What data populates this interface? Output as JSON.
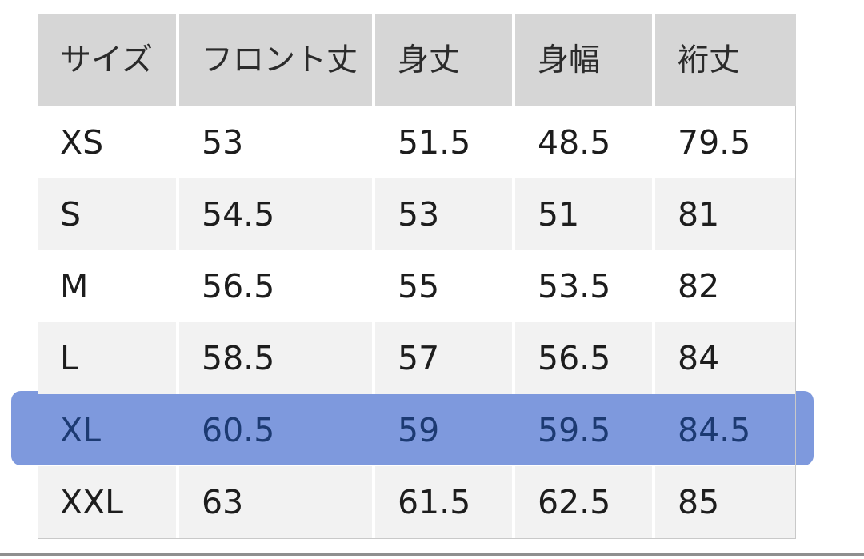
{
  "size_chart": {
    "columns": [
      {
        "key": "size",
        "label": "サイズ"
      },
      {
        "key": "front_length",
        "label": "フロント丈"
      },
      {
        "key": "body_length",
        "label": "身丈"
      },
      {
        "key": "body_width",
        "label": "身幅"
      },
      {
        "key": "sleeve_length",
        "label": "裄丈"
      }
    ],
    "rows": [
      {
        "size": "XS",
        "values": [
          "53",
          "51.5",
          "48.5",
          "79.5"
        ],
        "zebra": false,
        "highlighted": false
      },
      {
        "size": "S",
        "values": [
          "54.5",
          "53",
          "51",
          "81"
        ],
        "zebra": true,
        "highlighted": false
      },
      {
        "size": "M",
        "values": [
          "56.5",
          "55",
          "53.5",
          "82"
        ],
        "zebra": false,
        "highlighted": false
      },
      {
        "size": "L",
        "values": [
          "58.5",
          "57",
          "56.5",
          "84"
        ],
        "zebra": true,
        "highlighted": false
      },
      {
        "size": "XL",
        "values": [
          "60.5",
          "59",
          "59.5",
          "84.5"
        ],
        "zebra": false,
        "highlighted": true
      },
      {
        "size": "XXL",
        "values": [
          "63",
          "61.5",
          "62.5",
          "85"
        ],
        "zebra": true,
        "highlighted": false
      }
    ],
    "highlighted_row": "XL"
  },
  "colors": {
    "header_bg": "#d6d6d6",
    "row_alt_bg": "#f2f2f2",
    "highlight_bg": "#7e99dd",
    "highlight_text": "#1c3a72",
    "grid_line": "#cfcfcf",
    "bottom_divider": "#8f8f8f"
  }
}
